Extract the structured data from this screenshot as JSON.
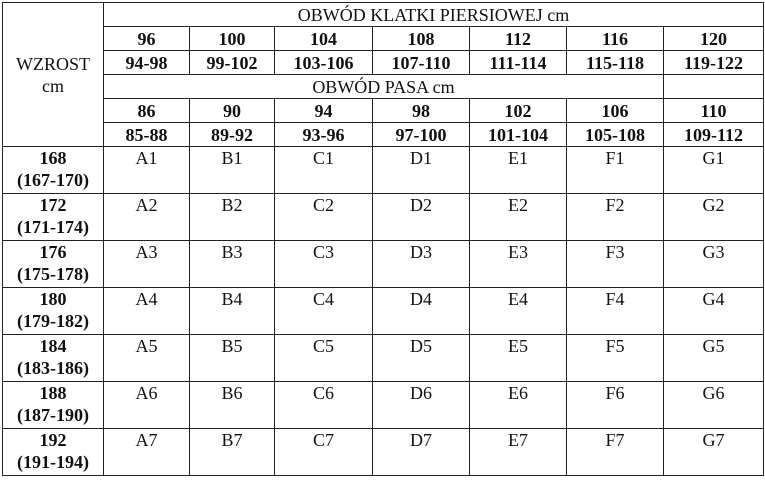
{
  "height_header": {
    "line1": "WZROST",
    "line2": "cm"
  },
  "chest_header": "OBWÓD KLATKI PIERSIOWEJ cm",
  "chest_sizes": [
    "96",
    "100",
    "104",
    "108",
    "112",
    "116",
    "120"
  ],
  "chest_ranges": [
    "94-98",
    "99-102",
    "103-106",
    "107-110",
    "111-114",
    "115-118",
    "119-122"
  ],
  "waist_header": "OBWÓD PASA cm",
  "waist_sizes": [
    "86",
    "90",
    "94",
    "98",
    "102",
    "106",
    "110"
  ],
  "waist_ranges": [
    "85-88",
    "89-92",
    "93-96",
    "97-100",
    "101-104",
    "105-108",
    "109-112"
  ],
  "rows": [
    {
      "height": "168",
      "range": "(167-170)",
      "cells": [
        "A1",
        "B1",
        "C1",
        "D1",
        "E1",
        "F1",
        "G1"
      ]
    },
    {
      "height": "172",
      "range": "(171-174)",
      "cells": [
        "A2",
        "B2",
        "C2",
        "D2",
        "E2",
        "F2",
        "G2"
      ]
    },
    {
      "height": "176",
      "range": "(175-178)",
      "cells": [
        "A3",
        "B3",
        "C3",
        "D3",
        "E3",
        "F3",
        "G3"
      ]
    },
    {
      "height": "180",
      "range": "(179-182)",
      "cells": [
        "A4",
        "B4",
        "C4",
        "D4",
        "E4",
        "F4",
        "G4"
      ]
    },
    {
      "height": "184",
      "range": "(183-186)",
      "cells": [
        "A5",
        "B5",
        "C5",
        "D5",
        "E5",
        "F5",
        "G5"
      ]
    },
    {
      "height": "188",
      "range": "(187-190)",
      "cells": [
        "A6",
        "B6",
        "C6",
        "D6",
        "E6",
        "F6",
        "G6"
      ]
    },
    {
      "height": "192",
      "range": "(191-194)",
      "cells": [
        "A7",
        "B7",
        "C7",
        "D7",
        "E7",
        "F7",
        "G7"
      ]
    }
  ]
}
